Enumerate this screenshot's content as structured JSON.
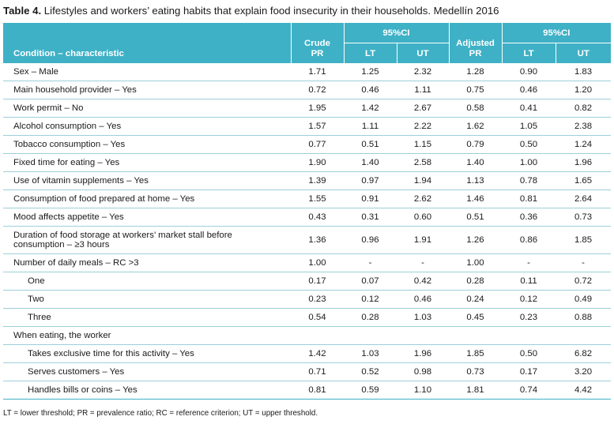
{
  "caption": {
    "label": "Table 4.",
    "text": " Lifestyles and workers’ eating habits that explain food insecurity in their households. Medellín 2016"
  },
  "header": {
    "condition": "Condition – characteristic",
    "crude_line1": "Crude",
    "crude_line2": "PR",
    "ci_crude": "95%CI",
    "adjusted_line1": "Adjusted",
    "adjusted_line2": "PR",
    "ci_adjusted": "95%CI",
    "lt": "LT",
    "ut": "UT"
  },
  "rows": [
    {
      "label": "Sex – Male",
      "crude": "1.71",
      "lt1": "1.25",
      "ut1": "2.32",
      "adj": "1.28",
      "lt2": "0.90",
      "ut2": "1.83"
    },
    {
      "label": "Main household provider – Yes",
      "crude": "0.72",
      "lt1": "0.46",
      "ut1": "1.11",
      "adj": "0.75",
      "lt2": "0.46",
      "ut2": "1.20"
    },
    {
      "label": "Work permit – No",
      "crude": "1.95",
      "lt1": "1.42",
      "ut1": "2.67",
      "adj": "0.58",
      "lt2": "0.41",
      "ut2": "0.82"
    },
    {
      "label": "Alcohol consumption – Yes",
      "crude": "1.57",
      "lt1": "1.11",
      "ut1": "2.22",
      "adj": "1.62",
      "lt2": "1.05",
      "ut2": "2.38"
    },
    {
      "label": "Tobacco consumption – Yes",
      "crude": "0.77",
      "lt1": "0.51",
      "ut1": "1.15",
      "adj": "0.79",
      "lt2": "0.50",
      "ut2": "1.24"
    },
    {
      "label": "Fixed time for eating – Yes",
      "crude": "1.90",
      "lt1": "1.40",
      "ut1": "2.58",
      "adj": "1.40",
      "lt2": "1.00",
      "ut2": "1.96"
    },
    {
      "label": "Use of vitamin supplements – Yes",
      "crude": "1.39",
      "lt1": "0.97",
      "ut1": "1.94",
      "adj": "1.13",
      "lt2": "0.78",
      "ut2": "1.65"
    },
    {
      "label": "Consumption of food prepared at home – Yes",
      "crude": "1.55",
      "lt1": "0.91",
      "ut1": "2.62",
      "adj": "1.46",
      "lt2": "0.81",
      "ut2": "2.64"
    },
    {
      "label": "Mood affects appetite – Yes",
      "crude": "0.43",
      "lt1": "0.31",
      "ut1": "0.60",
      "adj": "0.51",
      "lt2": "0.36",
      "ut2": "0.73"
    },
    {
      "label": "Duration of food storage at workers’ market stall before",
      "label2": "consumption – ≥3 hours",
      "crude": "1.36",
      "lt1": "0.96",
      "ut1": "1.91",
      "adj": "1.26",
      "lt2": "0.86",
      "ut2": "1.85"
    },
    {
      "label": "Number of daily meals – RC >3",
      "crude": "1.00",
      "lt1": "-",
      "ut1": "-",
      "adj": "1.00",
      "lt2": "-",
      "ut2": "-"
    },
    {
      "label": "One",
      "crude": "0.17",
      "lt1": "0.07",
      "ut1": "0.42",
      "adj": "0.28",
      "lt2": "0.11",
      "ut2": "0.72"
    },
    {
      "label": "Two",
      "crude": "0.23",
      "lt1": "0.12",
      "ut1": "0.46",
      "adj": "0.24",
      "lt2": "0.12",
      "ut2": "0.49"
    },
    {
      "label": "Three",
      "crude": "0.54",
      "lt1": "0.28",
      "ut1": "1.03",
      "adj": "0.45",
      "lt2": "0.23",
      "ut2": "0.88"
    },
    {
      "label": "When eating, the worker",
      "crude": "",
      "lt1": "",
      "ut1": "",
      "adj": "",
      "lt2": "",
      "ut2": ""
    },
    {
      "label": "Takes exclusive time for this activity – Yes",
      "crude": "1.42",
      "lt1": "1.03",
      "ut1": "1.96",
      "adj": "1.85",
      "lt2": "0.50",
      "ut2": "6.82"
    },
    {
      "label": "Serves customers – Yes",
      "crude": "0.71",
      "lt1": "0.52",
      "ut1": "0.98",
      "adj": "0.73",
      "lt2": "0.17",
      "ut2": "3.20"
    },
    {
      "label": "Handles bills or coins – Yes",
      "crude": "0.81",
      "lt1": "0.59",
      "ut1": "1.10",
      "adj": "1.81",
      "lt2": "0.74",
      "ut2": "4.42"
    }
  ],
  "footnote": "LT = lower threshold; PR = prevalence ratio; RC = reference criterion; UT = upper threshold."
}
